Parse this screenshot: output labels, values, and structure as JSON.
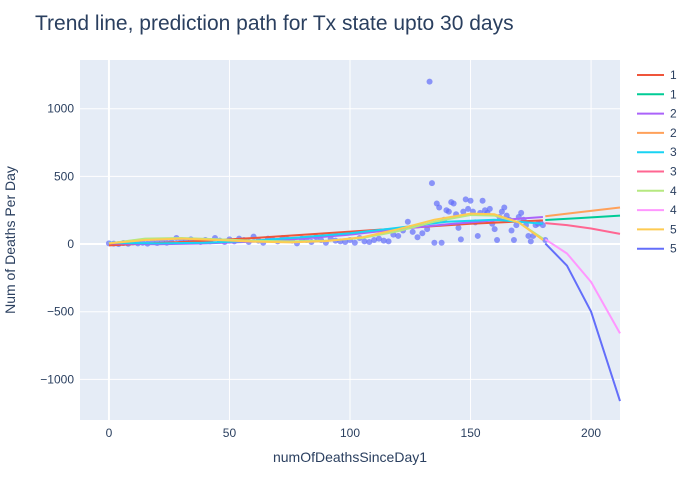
{
  "chart_data": {
    "type": "line",
    "title": "Trend line, prediction path for Tx state upto 30 days",
    "xlabel": "numOfDeathsSinceDay1",
    "ylabel": "Num of Deaths Per Day",
    "xlim": [
      -12,
      212
    ],
    "ylim": [
      -1300,
      1360
    ],
    "xticks": [
      0,
      50,
      100,
      150,
      200
    ],
    "yticks": [
      -1000,
      -500,
      0,
      500,
      1000
    ],
    "xtick_labels": [
      "0",
      "50",
      "100",
      "150",
      "200"
    ],
    "ytick_labels": [
      "−1000",
      "−500",
      "0",
      "500",
      "1000"
    ],
    "grid": true,
    "legend_position": "right",
    "plot_bg": "#e5ecf6",
    "scatter": {
      "color": "#636efa",
      "points": [
        [
          0,
          5
        ],
        [
          2,
          3
        ],
        [
          4,
          0
        ],
        [
          6,
          8
        ],
        [
          8,
          2
        ],
        [
          10,
          12
        ],
        [
          12,
          5
        ],
        [
          14,
          10
        ],
        [
          16,
          3
        ],
        [
          18,
          15
        ],
        [
          20,
          8
        ],
        [
          22,
          20
        ],
        [
          24,
          10
        ],
        [
          26,
          15
        ],
        [
          28,
          45
        ],
        [
          30,
          30
        ],
        [
          32,
          20
        ],
        [
          34,
          35
        ],
        [
          36,
          25
        ],
        [
          38,
          15
        ],
        [
          40,
          30
        ],
        [
          42,
          20
        ],
        [
          44,
          45
        ],
        [
          46,
          25
        ],
        [
          48,
          15
        ],
        [
          50,
          35
        ],
        [
          52,
          20
        ],
        [
          54,
          40
        ],
        [
          56,
          30
        ],
        [
          58,
          15
        ],
        [
          60,
          55
        ],
        [
          62,
          25
        ],
        [
          64,
          10
        ],
        [
          66,
          40
        ],
        [
          68,
          30
        ],
        [
          70,
          20
        ],
        [
          72,
          45
        ],
        [
          74,
          35
        ],
        [
          76,
          25
        ],
        [
          78,
          5
        ],
        [
          80,
          40
        ],
        [
          82,
          30
        ],
        [
          84,
          15
        ],
        [
          86,
          50
        ],
        [
          88,
          30
        ],
        [
          90,
          10
        ],
        [
          92,
          40
        ],
        [
          94,
          25
        ],
        [
          96,
          20
        ],
        [
          98,
          15
        ],
        [
          100,
          30
        ],
        [
          102,
          10
        ],
        [
          104,
          45
        ],
        [
          106,
          20
        ],
        [
          108,
          15
        ],
        [
          110,
          30
        ],
        [
          112,
          40
        ],
        [
          114,
          25
        ],
        [
          116,
          20
        ],
        [
          118,
          70
        ],
        [
          120,
          60
        ],
        [
          122,
          100
        ],
        [
          124,
          165
        ],
        [
          126,
          90
        ],
        [
          128,
          50
        ],
        [
          130,
          80
        ],
        [
          132,
          110
        ],
        [
          133,
          1200
        ],
        [
          134,
          450
        ],
        [
          135,
          10
        ],
        [
          136,
          300
        ],
        [
          137,
          270
        ],
        [
          138,
          10
        ],
        [
          139,
          180
        ],
        [
          140,
          250
        ],
        [
          141,
          240
        ],
        [
          142,
          310
        ],
        [
          143,
          300
        ],
        [
          144,
          220
        ],
        [
          145,
          120
        ],
        [
          146,
          35
        ],
        [
          147,
          240
        ],
        [
          148,
          330
        ],
        [
          149,
          260
        ],
        [
          150,
          320
        ],
        [
          151,
          240
        ],
        [
          152,
          160
        ],
        [
          153,
          60
        ],
        [
          154,
          230
        ],
        [
          155,
          320
        ],
        [
          156,
          250
        ],
        [
          157,
          230
        ],
        [
          158,
          260
        ],
        [
          159,
          150
        ],
        [
          160,
          110
        ],
        [
          161,
          30
        ],
        [
          162,
          200
        ],
        [
          163,
          240
        ],
        [
          164,
          270
        ],
        [
          165,
          210
        ],
        [
          166,
          180
        ],
        [
          167,
          100
        ],
        [
          168,
          30
        ],
        [
          169,
          140
        ],
        [
          170,
          200
        ],
        [
          171,
          230
        ],
        [
          172,
          180
        ],
        [
          173,
          140
        ],
        [
          174,
          60
        ],
        [
          175,
          20
        ],
        [
          176,
          60
        ],
        [
          177,
          140
        ],
        [
          178,
          150
        ],
        [
          179,
          160
        ],
        [
          180,
          140
        ],
        [
          181,
          30
        ]
      ]
    },
    "series": [
      {
        "name": "1",
        "color": "#ef553b",
        "x": [
          0,
          30,
          60,
          90,
          120,
          150,
          180
        ],
        "y": [
          -10,
          15,
          45,
          80,
          115,
          150,
          175
        ]
      },
      {
        "name": "1",
        "color": "#00cc96",
        "x": [
          181,
          195,
          212
        ],
        "y": [
          178,
          192,
          210
        ]
      },
      {
        "name": "2",
        "color": "#ab63fa",
        "x": [
          0,
          20,
          40,
          60,
          80,
          100,
          120,
          140,
          160,
          180
        ],
        "y": [
          5,
          -2,
          5,
          18,
          40,
          70,
          110,
          145,
          175,
          200
        ]
      },
      {
        "name": "2",
        "color": "#ffa15a",
        "x": [
          181,
          195,
          212
        ],
        "y": [
          205,
          235,
          270
        ]
      },
      {
        "name": "3",
        "color": "#19d3f3",
        "x": [
          0,
          20,
          40,
          60,
          80,
          100,
          120,
          140,
          160,
          180
        ],
        "y": [
          10,
          5,
          10,
          25,
          50,
          80,
          120,
          165,
          180,
          150
        ]
      },
      {
        "name": "3",
        "color": "#ff6692",
        "x": [
          181,
          190,
          200,
          212
        ],
        "y": [
          155,
          140,
          115,
          75
        ]
      },
      {
        "name": "4",
        "color": "#b6e880",
        "x": [
          0,
          15,
          30,
          45,
          60,
          75,
          90,
          105,
          120,
          135,
          150,
          160,
          170,
          180
        ],
        "y": [
          5,
          40,
          45,
          35,
          25,
          20,
          25,
          45,
          95,
          165,
          215,
          210,
          160,
          40
        ]
      },
      {
        "name": "4",
        "color": "#ff97ff",
        "x": [
          181,
          190,
          200,
          212
        ],
        "y": [
          35,
          -70,
          -280,
          -660
        ]
      },
      {
        "name": "5",
        "color": "#fecb52",
        "x": [
          0,
          15,
          30,
          45,
          60,
          75,
          90,
          105,
          120,
          135,
          150,
          160,
          170,
          180
        ],
        "y": [
          5,
          30,
          40,
          30,
          18,
          12,
          22,
          50,
          110,
          180,
          225,
          220,
          160,
          30
        ]
      },
      {
        "name": "5",
        "color": "#636efa",
        "x": [
          181,
          190,
          200,
          212
        ],
        "y": [
          5,
          -160,
          -500,
          -1160
        ]
      }
    ]
  }
}
